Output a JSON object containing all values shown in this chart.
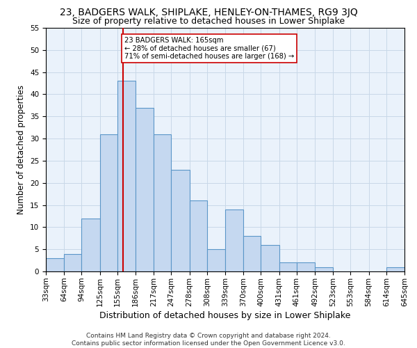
{
  "title": "23, BADGERS WALK, SHIPLAKE, HENLEY-ON-THAMES, RG9 3JQ",
  "subtitle": "Size of property relative to detached houses in Lower Shiplake",
  "xlabel": "Distribution of detached houses by size in Lower Shiplake",
  "ylabel": "Number of detached properties",
  "bin_labels": [
    "33sqm",
    "64sqm",
    "94sqm",
    "125sqm",
    "155sqm",
    "186sqm",
    "217sqm",
    "247sqm",
    "278sqm",
    "308sqm",
    "339sqm",
    "370sqm",
    "400sqm",
    "431sqm",
    "461sqm",
    "492sqm",
    "523sqm",
    "553sqm",
    "584sqm",
    "614sqm",
    "645sqm"
  ],
  "bin_edges": [
    33,
    64,
    94,
    125,
    155,
    186,
    217,
    247,
    278,
    308,
    339,
    370,
    400,
    431,
    461,
    492,
    523,
    553,
    584,
    614,
    645
  ],
  "bar_heights": [
    3,
    4,
    12,
    31,
    43,
    37,
    31,
    23,
    16,
    5,
    14,
    8,
    6,
    2,
    2,
    1,
    0,
    0,
    0,
    1,
    0
  ],
  "bar_color": "#c5d8f0",
  "bar_edge_color": "#5a96c8",
  "grid_color": "#c8d8e8",
  "bg_color": "#eaf2fb",
  "property_size": 165,
  "vline_color": "#cc0000",
  "annotation_text": "23 BADGERS WALK: 165sqm\n← 28% of detached houses are smaller (67)\n71% of semi-detached houses are larger (168) →",
  "annotation_box_color": "#ffffff",
  "annotation_box_edge": "#cc0000",
  "ylim": [
    0,
    55
  ],
  "yticks": [
    0,
    5,
    10,
    15,
    20,
    25,
    30,
    35,
    40,
    45,
    50,
    55
  ],
  "footer": "Contains HM Land Registry data © Crown copyright and database right 2024.\nContains public sector information licensed under the Open Government Licence v3.0.",
  "title_fontsize": 10,
  "subtitle_fontsize": 9,
  "xlabel_fontsize": 9,
  "ylabel_fontsize": 8.5,
  "tick_fontsize": 7.5,
  "footer_fontsize": 6.5
}
